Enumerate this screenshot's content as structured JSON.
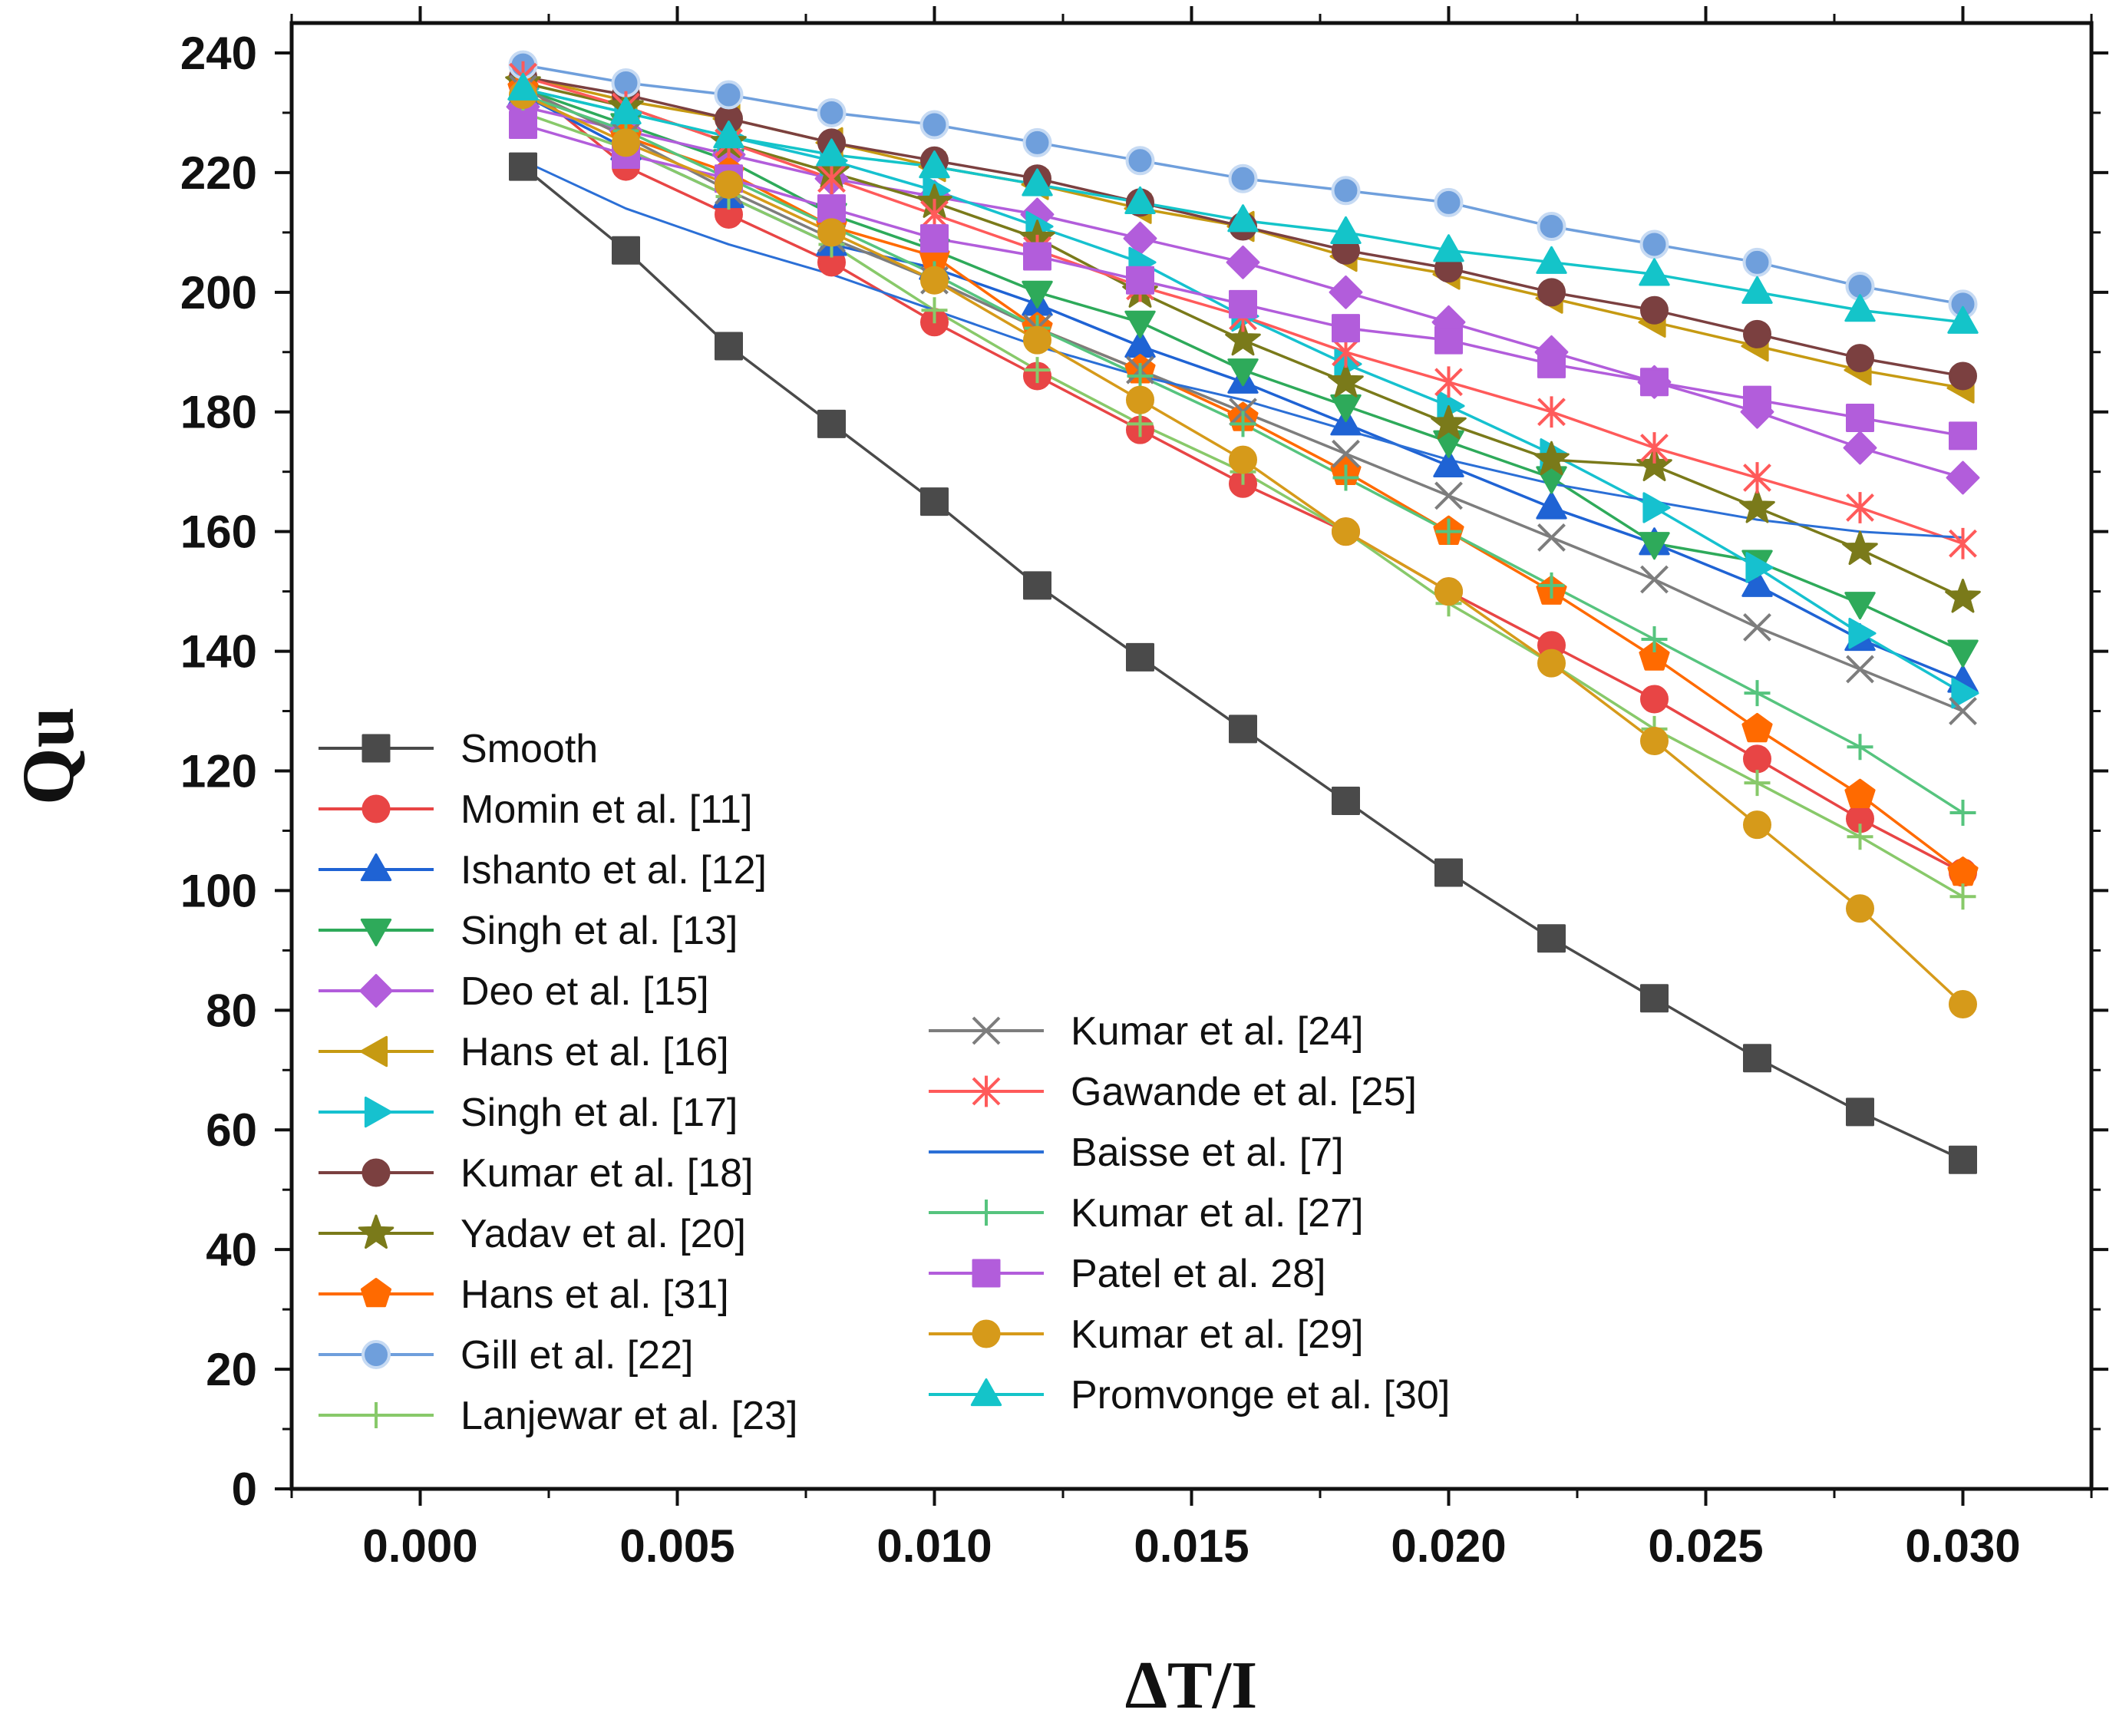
{
  "chart_data": {
    "type": "line",
    "xlabel": "ΔT/I",
    "ylabel": "Qu",
    "xlim": [
      -0.0025,
      0.0325
    ],
    "ylim": [
      0,
      245
    ],
    "xticks": [
      "0.000",
      "0.005",
      "0.010",
      "0.015",
      "0.020",
      "0.025",
      "0.030"
    ],
    "xtick_values": [
      0,
      0.005,
      0.01,
      0.015,
      0.02,
      0.025,
      0.03
    ],
    "yticks": [
      "0",
      "20",
      "40",
      "60",
      "80",
      "100",
      "120",
      "140",
      "160",
      "180",
      "200",
      "220",
      "240"
    ],
    "ytick_values": [
      0,
      20,
      40,
      60,
      80,
      100,
      120,
      140,
      160,
      180,
      200,
      220,
      240
    ],
    "x": [
      0.002,
      0.004,
      0.006,
      0.008,
      0.01,
      0.012,
      0.014,
      0.016,
      0.018,
      0.02,
      0.022,
      0.024,
      0.026,
      0.028,
      0.03
    ],
    "series": [
      {
        "name": "Smooth",
        "color": "#4a4a4a",
        "marker": "square",
        "values": [
          221,
          207,
          191,
          178,
          165,
          151,
          139,
          127,
          115,
          103,
          92,
          82,
          72,
          63,
          55
        ]
      },
      {
        "name": "Momin et al. [11]",
        "color": "#e84545",
        "marker": "circle",
        "values": [
          235,
          221,
          213,
          205,
          195,
          186,
          177,
          168,
          160,
          150,
          141,
          132,
          122,
          112,
          103
        ]
      },
      {
        "name": "Ishanto et al. [12]",
        "color": "#1f63d4",
        "marker": "triangle-up",
        "values": [
          233,
          224,
          216,
          208,
          204,
          198,
          191,
          185,
          178,
          171,
          164,
          158,
          151,
          142,
          135
        ]
      },
      {
        "name": "Singh et al. [13]",
        "color": "#2eaa5a",
        "marker": "triangle-down",
        "values": [
          234,
          228,
          222,
          213,
          207,
          200,
          195,
          187,
          181,
          175,
          169,
          158,
          155,
          148,
          140
        ]
      },
      {
        "name": "Deo et al. [15]",
        "color": "#b25ddb",
        "marker": "diamond",
        "values": [
          231,
          227,
          223,
          219,
          216,
          213,
          209,
          205,
          200,
          195,
          190,
          185,
          180,
          174,
          169
        ]
      },
      {
        "name": "Hans et al. [16]",
        "color": "#c69a12",
        "marker": "triangle-left",
        "values": [
          236,
          232,
          229,
          225,
          221,
          218,
          214,
          211,
          206,
          203,
          199,
          195,
          191,
          187,
          184
        ]
      },
      {
        "name": "Singh et al. [17]",
        "color": "#16c1cf",
        "marker": "triangle-right",
        "values": [
          234,
          230,
          226,
          222,
          217,
          211,
          205,
          196,
          188,
          181,
          173,
          164,
          154,
          143,
          133
        ]
      },
      {
        "name": "Kumar et al. [18]",
        "color": "#7b4040",
        "marker": "circle",
        "values": [
          236,
          233,
          229,
          225,
          222,
          219,
          215,
          211,
          207,
          204,
          200,
          197,
          193,
          189,
          186
        ]
      },
      {
        "name": "Yadav et al. [20]",
        "color": "#7a7a1a",
        "marker": "star",
        "values": [
          235,
          231,
          225,
          220,
          215,
          209,
          200,
          192,
          185,
          178,
          172,
          171,
          164,
          157,
          149
        ]
      },
      {
        "name": "Hans et al. [31]",
        "color": "#ff6a00",
        "marker": "pentagon",
        "values": [
          234,
          226,
          220,
          211,
          206,
          194,
          187,
          179,
          170,
          160,
          150,
          139,
          127,
          116,
          103
        ]
      },
      {
        "name": "Gill et al. [22]",
        "color": "#6f9fdc",
        "marker": "sphere",
        "values": [
          238,
          235,
          233,
          230,
          228,
          225,
          222,
          219,
          217,
          215,
          211,
          208,
          205,
          201,
          198
        ]
      },
      {
        "name": "Lanjewar et al. [23]",
        "color": "#88c96a",
        "marker": "plus",
        "values": [
          230,
          224,
          216,
          208,
          197,
          187,
          178,
          170,
          160,
          148,
          138,
          127,
          118,
          109,
          99
        ]
      },
      {
        "name": "Kumar et al. [24]",
        "color": "#7d7d7d",
        "marker": "x",
        "values": [
          234,
          226,
          217,
          209,
          202,
          194,
          187,
          180,
          173,
          166,
          159,
          152,
          144,
          137,
          130
        ]
      },
      {
        "name": "Gawande et al. [25]",
        "color": "#ff5a5a",
        "marker": "asterisk",
        "values": [
          236,
          231,
          225,
          219,
          213,
          207,
          201,
          196,
          190,
          185,
          180,
          174,
          169,
          164,
          158
        ]
      },
      {
        "name": "Baisse et al. [7]",
        "color": "#2b6fd6",
        "marker": "none",
        "values": [
          222,
          214,
          208,
          203,
          197,
          191,
          186,
          182,
          177,
          172,
          168,
          165,
          162,
          160,
          159
        ]
      },
      {
        "name": "Kumar et al. [27]",
        "color": "#56c47e",
        "marker": "plus",
        "values": [
          233,
          227,
          219,
          211,
          203,
          194,
          186,
          178,
          169,
          160,
          151,
          142,
          133,
          124,
          113
        ]
      },
      {
        "name": "Patel et al. 28]",
        "color": "#b25ddb",
        "marker": "square",
        "values": [
          228,
          223,
          219,
          214,
          209,
          206,
          202,
          198,
          194,
          192,
          188,
          185,
          182,
          179,
          176
        ]
      },
      {
        "name": "Kumar et al. [29]",
        "color": "#d69a1a",
        "marker": "circle",
        "values": [
          233,
          225,
          218,
          210,
          202,
          192,
          182,
          172,
          160,
          150,
          138,
          125,
          111,
          97,
          81
        ]
      },
      {
        "name": "Promvonge et al. [30]",
        "color": "#14c4c9",
        "marker": "triangle-up",
        "values": [
          234,
          230,
          226,
          223,
          221,
          218,
          215,
          212,
          210,
          207,
          205,
          203,
          200,
          197,
          195
        ]
      }
    ],
    "legend_col1": [
      "Smooth",
      "Momin et al. [11]",
      "Ishanto et al. [12]",
      "Singh et al. [13]",
      "Deo et al. [15]",
      "Hans et al. [16]",
      "Singh et al. [17]",
      "Kumar et al. [18]",
      "Yadav et al. [20]",
      "Hans et al. [31]",
      "Gill et al. [22]",
      "Lanjewar et al. [23]"
    ],
    "legend_col2": [
      "Kumar et al. [24]",
      "Gawande et al. [25]",
      "Baisse et al. [7]",
      "Kumar et al. [27]",
      "Patel et al. 28]",
      "Kumar et al. [29]",
      "Promvonge et al. [30]"
    ],
    "legend_placement": "lower-left"
  }
}
